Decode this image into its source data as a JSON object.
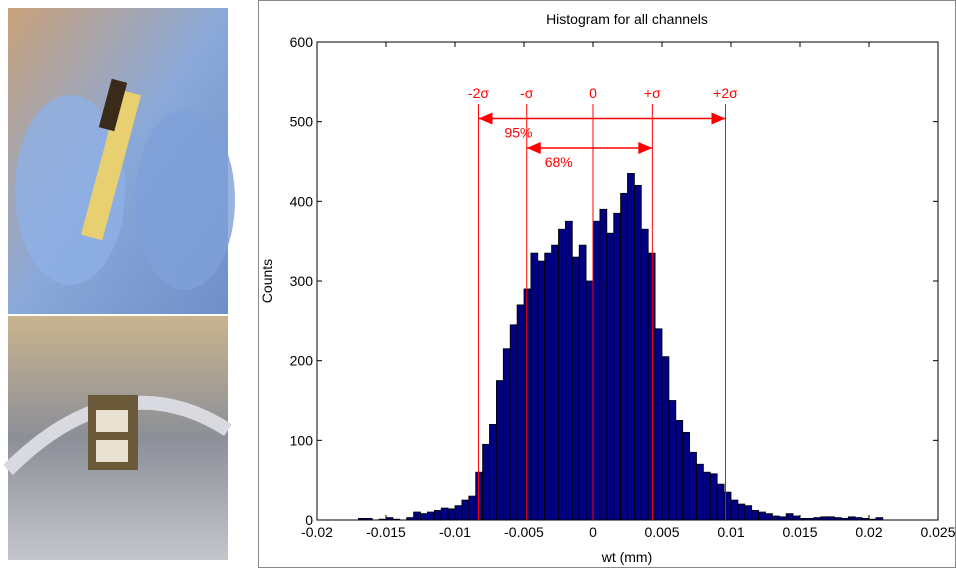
{
  "chart_data": {
    "type": "histogram",
    "title": "Histogram for all channels",
    "x_label": "wt (mm)",
    "y_label": "Counts",
    "bins": [
      -0.017,
      -0.0165,
      -0.016,
      -0.0155,
      -0.015,
      -0.0145,
      -0.014,
      -0.0135,
      -0.013,
      -0.0125,
      -0.012,
      -0.0115,
      -0.011,
      -0.0105,
      -0.01,
      -0.0095,
      -0.009,
      -0.0085,
      -0.008,
      -0.0075,
      -0.007,
      -0.0065,
      -0.006,
      -0.0055,
      -0.005,
      -0.0045,
      -0.004,
      -0.0035,
      -0.003,
      -0.0025,
      -0.002,
      -0.0015,
      -0.001,
      -0.0005,
      0,
      0.0005,
      0.001,
      0.0015,
      0.002,
      0.0025,
      0.003,
      0.0035,
      0.004,
      0.0045,
      0.005,
      0.0055,
      0.006,
      0.0065,
      0.007,
      0.0075,
      0.008,
      0.0085,
      0.009,
      0.0095,
      0.01,
      0.0105,
      0.011,
      0.0115,
      0.012,
      0.0125,
      0.013,
      0.0135,
      0.014,
      0.0145,
      0.015,
      0.0155,
      0.016,
      0.0165,
      0.017,
      0.0175,
      0.018,
      0.0185,
      0.019,
      0.0195,
      0.02,
      0.0205,
      0.021,
      0.0215,
      0.022
    ],
    "values": [
      2,
      2,
      0,
      1,
      3,
      1,
      0,
      3,
      10,
      8,
      10,
      12,
      15,
      14,
      18,
      25,
      30,
      60,
      95,
      120,
      175,
      215,
      245,
      270,
      290,
      335,
      325,
      335,
      345,
      365,
      375,
      330,
      345,
      300,
      375,
      390,
      360,
      385,
      410,
      435,
      420,
      365,
      335,
      240,
      205,
      150,
      125,
      110,
      85,
      70,
      60,
      58,
      45,
      35,
      25,
      20,
      18,
      12,
      10,
      8,
      5,
      4,
      8,
      5,
      2,
      2,
      3,
      4,
      4,
      3,
      2,
      4,
      3,
      2,
      1,
      3,
      0,
      0
    ],
    "color": "#000080",
    "edge_color": "#000000",
    "annotation_color": "#ff0000",
    "xlim": [
      -0.02,
      0.025
    ],
    "xticks": [
      -0.02,
      -0.015,
      -0.01,
      -0.005,
      0,
      0.005,
      0.01,
      0.015,
      0.02,
      0.025
    ],
    "ylim": [
      0,
      600
    ],
    "yticks": [
      0,
      100,
      200,
      300,
      400,
      500,
      600
    ],
    "annotations": {
      "lines": [
        {
          "x": -0.0083,
          "label": "-2σ"
        },
        {
          "x": -0.0048,
          "label": "-σ"
        },
        {
          "x": 0,
          "label": "0"
        },
        {
          "x": 0.0043,
          "label": "+σ"
        },
        {
          "x": 0.0096,
          "label": "+2σ"
        }
      ],
      "arrows": [
        {
          "from": -0.0083,
          "to": 0.0096,
          "y": 504,
          "label": "95%"
        },
        {
          "from": -0.0048,
          "to": 0.0043,
          "y": 467,
          "label": "68%"
        }
      ]
    }
  }
}
